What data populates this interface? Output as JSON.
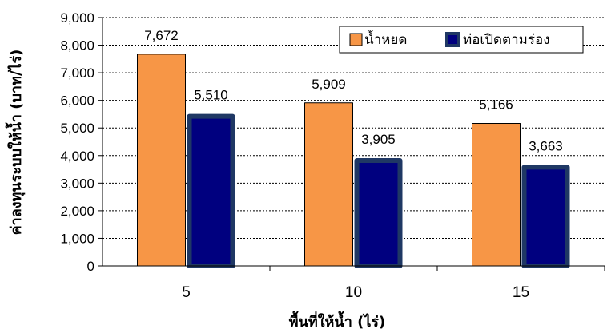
{
  "chart_data": {
    "type": "bar",
    "categories": [
      "5",
      "10",
      "15"
    ],
    "series": [
      {
        "name": "น้ำหยด",
        "values": [
          7672,
          5909,
          5166
        ],
        "color": "#f79646",
        "border": "#000000"
      },
      {
        "name": "ท่อเปิดตามร่อง",
        "values": [
          5510,
          3905,
          3663
        ],
        "color": "#00007f",
        "border": "#1f3864"
      }
    ],
    "data_labels": [
      [
        "7,672",
        "5,909",
        "5,166"
      ],
      [
        "5,510",
        "3,905",
        "3,663"
      ]
    ],
    "y_tick_labels": [
      "0",
      "1,000",
      "2,000",
      "3,000",
      "4,000",
      "5,000",
      "6,000",
      "7,000",
      "8,000",
      "9,000"
    ],
    "ylim": [
      0,
      9000
    ],
    "ystep": 1000,
    "xlabel": "พื้นที่ให้น้ำ (ไร่)",
    "ylabel": "ค่าลงทุนระบบให้น้ำ (บาท/ไร่)",
    "grid": "horizontal-dashed",
    "legend_position": "top-right"
  }
}
